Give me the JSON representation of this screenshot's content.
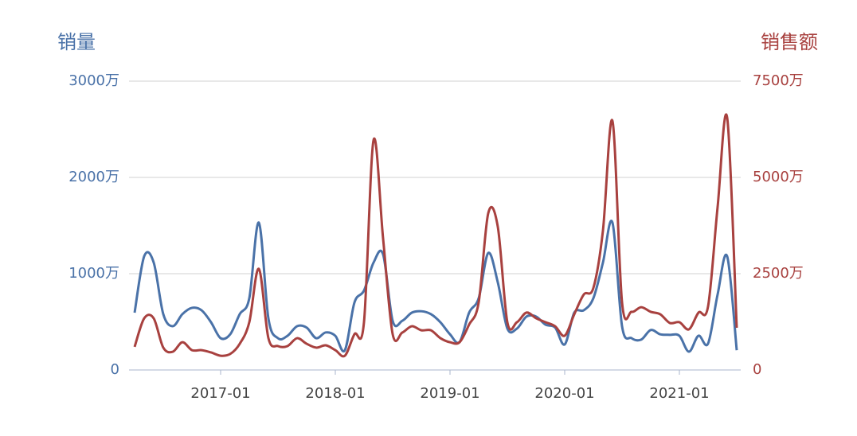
{
  "chart_data": {
    "type": "line",
    "y_label": "销量",
    "y2_label": "销售额",
    "x": [
      "2016-04",
      "2016-05",
      "2016-06",
      "2016-07",
      "2016-08",
      "2016-09",
      "2016-10",
      "2016-11",
      "2016-12",
      "2017-01",
      "2017-02",
      "2017-03",
      "2017-04",
      "2017-05",
      "2017-06",
      "2017-07",
      "2017-08",
      "2017-09",
      "2017-10",
      "2017-11",
      "2017-12",
      "2018-01",
      "2018-02",
      "2018-03",
      "2018-04",
      "2018-05",
      "2018-06",
      "2018-07",
      "2018-08",
      "2018-09",
      "2018-10",
      "2018-11",
      "2018-12",
      "2019-01",
      "2019-02",
      "2019-03",
      "2019-04",
      "2019-05",
      "2019-06",
      "2019-07",
      "2019-08",
      "2019-09",
      "2019-10",
      "2019-11",
      "2019-12",
      "2020-01",
      "2020-02",
      "2020-03",
      "2020-04",
      "2020-05",
      "2020-06",
      "2020-07",
      "2020-08",
      "2020-09",
      "2020-10",
      "2020-11",
      "2020-12",
      "2021-01",
      "2021-02",
      "2021-03",
      "2021-04",
      "2021-05",
      "2021-06",
      "2021-07"
    ],
    "xticks": [
      "2017-01",
      "2018-01",
      "2019-01",
      "2020-01",
      "2021-01"
    ],
    "series": [
      {
        "name": "销量",
        "color": "#4a72a8",
        "axis": "y",
        "values": [
          595,
          1180,
          1115,
          580,
          455,
          580,
          645,
          620,
          495,
          330,
          370,
          580,
          745,
          1530,
          535,
          330,
          355,
          455,
          440,
          330,
          390,
          355,
          205,
          700,
          825,
          1115,
          1200,
          510,
          510,
          595,
          610,
          580,
          495,
          370,
          290,
          595,
          745,
          1215,
          910,
          430,
          430,
          555,
          555,
          470,
          440,
          265,
          595,
          620,
          745,
          1115,
          1530,
          455,
          330,
          315,
          415,
          370,
          365,
          355,
          190,
          355,
          275,
          785,
          1180,
          205
        ]
      },
      {
        "name": "销售额",
        "color": "#a8413f",
        "axis": "y2",
        "values": [
          600,
          1340,
          1340,
          580,
          475,
          720,
          515,
          515,
          455,
          370,
          415,
          680,
          1240,
          2625,
          825,
          620,
          620,
          825,
          680,
          580,
          640,
          515,
          370,
          930,
          1240,
          5970,
          3410,
          930,
          970,
          1135,
          1030,
          1030,
          825,
          720,
          720,
          1180,
          1755,
          4070,
          3720,
          1240,
          1240,
          1490,
          1345,
          1240,
          1135,
          890,
          1445,
          1960,
          2130,
          3615,
          6465,
          1755,
          1510,
          1630,
          1510,
          1445,
          1220,
          1240,
          1055,
          1490,
          1650,
          4235,
          6550,
          1095
        ]
      }
    ],
    "ylim": [
      0,
      3000
    ],
    "yticks": [
      0,
      {
        "value": 1000,
        "label": "1000万"
      },
      {
        "value": 2000,
        "label": "2000万"
      },
      {
        "value": 3000,
        "label": "3000万"
      }
    ],
    "y2lim": [
      0,
      7500
    ],
    "y2ticks": [
      0,
      {
        "value": 2500,
        "label": "2500万"
      },
      {
        "value": 5000,
        "label": "5000万"
      },
      {
        "value": 7500,
        "label": "7500万"
      }
    ],
    "grid": true
  }
}
